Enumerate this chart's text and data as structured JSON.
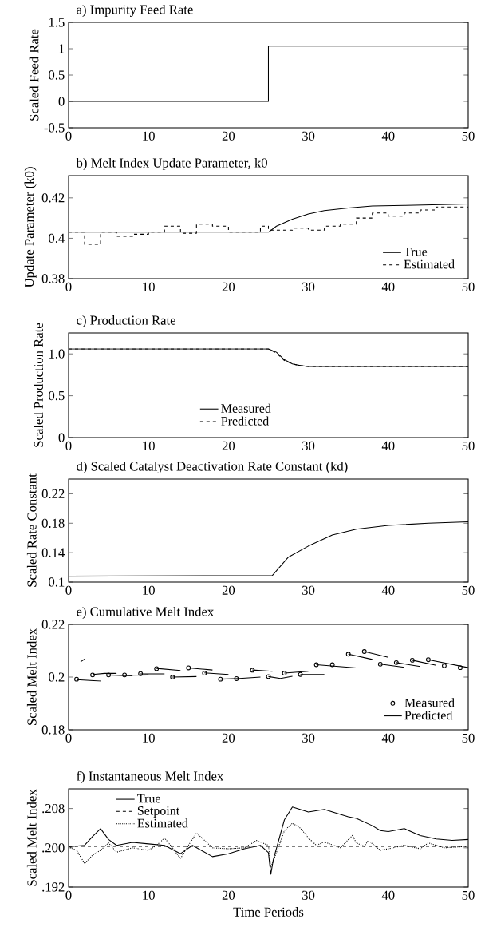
{
  "chart_data": [
    {
      "type": "step",
      "title": "a) Impurity Feed Rate",
      "ylabel": "Scaled Feed Rate",
      "xlim": [
        0,
        50
      ],
      "ylim": [
        -0.5,
        1.5
      ],
      "xticks": [
        0,
        10,
        20,
        30,
        40,
        50
      ],
      "yticks": [
        -0.5,
        0,
        0.5,
        1,
        1.5
      ],
      "legend": false,
      "series": [
        {
          "color": "#000000",
          "x": [
            0,
            25,
            50
          ],
          "values": [
            0,
            1.05,
            1.05
          ]
        }
      ]
    },
    {
      "type": "line",
      "title": "b) Melt Index Update Parameter, k0",
      "ylabel": "Update Parameter (k0)",
      "xlim": [
        0,
        50
      ],
      "ylim": [
        0.38,
        0.431
      ],
      "xticks": [
        0,
        10,
        20,
        30,
        40,
        50
      ],
      "yticks": [
        0.38,
        0.4,
        0.42
      ],
      "legend": "bottom right",
      "series": [
        {
          "name": "True",
          "color": "#000000",
          "line_style": "solid",
          "x": [
            0,
            25,
            26,
            28,
            30,
            32,
            35,
            38,
            42,
            50
          ],
          "values": [
            0.403,
            0.403,
            0.406,
            0.4095,
            0.412,
            0.4137,
            0.415,
            0.416,
            0.4163,
            0.417
          ]
        },
        {
          "name": "Estimated",
          "type": "step",
          "color": "#000000",
          "line_style": "dashed",
          "x": [
            0,
            2,
            4,
            6,
            8,
            10,
            12,
            14,
            16,
            18,
            20,
            24,
            25,
            28,
            30,
            32,
            34,
            36,
            38,
            40,
            42,
            44,
            46,
            50
          ],
          "values": [
            0.403,
            0.397,
            0.403,
            0.401,
            0.402,
            0.403,
            0.406,
            0.4025,
            0.407,
            0.406,
            0.403,
            0.406,
            0.404,
            0.405,
            0.404,
            0.406,
            0.407,
            0.41,
            0.4125,
            0.411,
            0.4125,
            0.414,
            0.4155,
            0.4155
          ]
        }
      ]
    },
    {
      "type": "line",
      "title": "c) Production Rate",
      "ylabel": "Scaled Production Rate",
      "xlim": [
        0,
        50
      ],
      "ylim": [
        0,
        1.25
      ],
      "xticks": [
        0,
        10,
        20,
        30,
        40,
        50
      ],
      "yticks": [
        0,
        0.5,
        {
          "value": 1,
          "label": "1.0"
        }
      ],
      "legend": "bottom",
      "series": [
        {
          "name": "Measured",
          "color": "#000000",
          "line_style": "solid",
          "x": [
            0,
            25,
            26,
            27,
            28,
            29,
            30,
            35,
            50
          ],
          "values": [
            1.06,
            1.06,
            1.02,
            0.93,
            0.88,
            0.86,
            0.85,
            0.85,
            0.85
          ]
        },
        {
          "name": "Predicted",
          "color": "#000000",
          "line_style": "dashed",
          "x": [
            0,
            25,
            26,
            27,
            28,
            29,
            30,
            35,
            50
          ],
          "values": [
            1.06,
            1.06,
            1.01,
            0.92,
            0.88,
            0.86,
            0.85,
            0.85,
            0.85
          ]
        }
      ]
    },
    {
      "type": "line",
      "title": "d) Scaled Catalyst Deactivation Rate Constant (kd)",
      "ylabel": "Scaled Rate Constant",
      "xlim": [
        0,
        50
      ],
      "ylim": [
        0.1,
        0.24
      ],
      "xticks": [
        0,
        10,
        20,
        30,
        40,
        50
      ],
      "yticks": [
        0.1,
        0.14,
        0.18,
        0.22
      ],
      "legend": false,
      "series": [
        {
          "color": "#000000",
          "line_style": "solid",
          "x": [
            0,
            25.5,
            27.5,
            30,
            33,
            36,
            40,
            45,
            50
          ],
          "values": [
            0.108,
            0.109,
            0.134,
            0.149,
            0.164,
            0.172,
            0.177,
            0.18,
            0.182
          ]
        }
      ]
    },
    {
      "type": "line",
      "title": "e) Cumulative Melt Index",
      "ylabel": "Scaled Melt Index",
      "xlim": [
        0,
        50
      ],
      "ylim": [
        0.18,
        0.22
      ],
      "xticks": [
        0,
        10,
        20,
        30,
        40,
        50
      ],
      "yticks": [
        0.18,
        0.2,
        0.22
      ],
      "legend": "bottom right",
      "series": [
        {
          "name": "Measured",
          "type": "scatter",
          "marker": "circle",
          "color": "#000000",
          "x": [
            1,
            3,
            5,
            7,
            9,
            11,
            13,
            15,
            17,
            19,
            21,
            23,
            25,
            27,
            29,
            31,
            33,
            35,
            37,
            39,
            41,
            43,
            45,
            47,
            49
          ],
          "values": [
            0.1992,
            0.2008,
            0.2008,
            0.2008,
            0.2013,
            0.2032,
            0.2,
            0.2035,
            0.2015,
            0.1992,
            0.1994,
            0.2026,
            0.2002,
            0.2015,
            0.201,
            0.2047,
            0.2047,
            0.2087,
            0.2097,
            0.2049,
            0.2055,
            0.2064,
            0.2066,
            0.2043,
            0.2036
          ]
        },
        {
          "name": "Predicted",
          "color": "#000000",
          "line_style": "solid",
          "x": [
            1.5,
            2,
            null,
            1,
            4,
            null,
            3,
            4.5,
            6,
            null,
            5,
            8,
            null,
            7,
            10,
            null,
            9,
            12,
            null,
            11,
            14,
            null,
            13,
            16,
            null,
            15,
            18,
            null,
            17,
            20,
            null,
            19,
            22,
            null,
            21,
            24,
            null,
            23,
            25.5,
            null,
            25,
            26.5,
            28,
            null,
            27,
            30,
            null,
            29,
            32,
            null,
            31,
            36,
            null,
            35,
            38,
            null,
            37,
            40,
            null,
            39,
            42,
            null,
            41,
            44,
            null,
            43,
            46,
            null,
            45,
            50
          ],
          "values": [
            0.2058,
            0.2068,
            null,
            0.199,
            0.1985,
            null,
            0.201,
            0.2014,
            0.2014,
            null,
            0.2008,
            0.2005,
            null,
            0.2007,
            0.2008,
            null,
            0.2012,
            0.2012,
            null,
            0.2033,
            0.2025,
            null,
            0.2,
            0.2002,
            null,
            0.2035,
            0.2027,
            null,
            0.2016,
            0.201,
            null,
            0.1992,
            0.1995,
            null,
            0.1994,
            0.2,
            null,
            0.2027,
            0.2022,
            null,
            0.2002,
            0.1995,
            0.2003,
            null,
            0.2015,
            0.2022,
            null,
            0.201,
            0.201,
            null,
            0.2047,
            0.2035,
            null,
            0.2087,
            0.2067,
            null,
            0.2097,
            0.2075,
            null,
            0.2049,
            0.2037,
            null,
            0.2055,
            0.204,
            null,
            0.2064,
            0.2045,
            null,
            0.2066,
            0.2036
          ]
        }
      ]
    },
    {
      "type": "line",
      "title": "f) Instantaneous Melt Index",
      "xlabel": "Time Periods",
      "ylabel": "Scaled Melt Index",
      "xlim": [
        0,
        50
      ],
      "ylim": [
        0.192,
        0.212
      ],
      "xticks": [
        0,
        10,
        20,
        30,
        40,
        50
      ],
      "yticks": [
        {
          "value": 0.192,
          "label": ".192"
        },
        {
          "value": 0.2,
          "label": ".200"
        },
        {
          "value": 0.208,
          "label": ".208"
        }
      ],
      "legend": "top left",
      "series": [
        {
          "name": "True",
          "color": "#000000",
          "line_style": "solid",
          "x": [
            0,
            2,
            3,
            4,
            5,
            6,
            8,
            10,
            12,
            14,
            15.5,
            18,
            20,
            22,
            24,
            25,
            25.3,
            25.6,
            27,
            28,
            30,
            32,
            35,
            36,
            38,
            39,
            40,
            42,
            44,
            46,
            48,
            50
          ],
          "values": [
            0.2002,
            0.2005,
            0.2023,
            0.2039,
            0.2017,
            0.2005,
            0.2011,
            0.2008,
            0.2005,
            0.1988,
            0.2005,
            0.1982,
            0.1988,
            0.1998,
            0.2005,
            0.199,
            0.1946,
            0.1975,
            0.2057,
            0.2083,
            0.2073,
            0.2078,
            0.2063,
            0.206,
            0.2045,
            0.2035,
            0.2033,
            0.2039,
            0.2025,
            0.2018,
            0.2015,
            0.2017
          ]
        },
        {
          "name": "Setpoint",
          "color": "#000000",
          "line_style": "dashed",
          "x": [
            0,
            50
          ],
          "values": [
            0.2003,
            0.2003
          ]
        },
        {
          "name": "Estimated",
          "color": "#000000",
          "line_style": "dotted",
          "x": [
            0,
            1,
            2,
            3,
            4,
            5,
            6,
            8,
            10,
            11,
            12,
            13,
            14,
            15,
            16,
            17,
            18,
            20,
            22,
            23.5,
            25,
            25.3,
            26,
            27,
            28,
            29,
            30,
            31,
            32,
            34,
            35.5,
            36,
            37,
            37.5,
            39,
            40,
            42,
            44,
            45,
            47,
            50
          ],
          "values": [
            0.2002,
            0.1995,
            0.1968,
            0.1985,
            0.1995,
            0.201,
            0.1991,
            0.2,
            0.1995,
            0.2005,
            0.202,
            0.2,
            0.1978,
            0.2005,
            0.203,
            0.2015,
            0.2,
            0.1998,
            0.2,
            0.2015,
            0.2005,
            0.196,
            0.199,
            0.2035,
            0.205,
            0.204,
            0.202,
            0.2005,
            0.2012,
            0.2,
            0.2025,
            0.201,
            0.2003,
            0.2015,
            0.1995,
            0.1998,
            0.2005,
            0.1998,
            0.201,
            0.2,
            0.2003
          ]
        }
      ]
    }
  ]
}
